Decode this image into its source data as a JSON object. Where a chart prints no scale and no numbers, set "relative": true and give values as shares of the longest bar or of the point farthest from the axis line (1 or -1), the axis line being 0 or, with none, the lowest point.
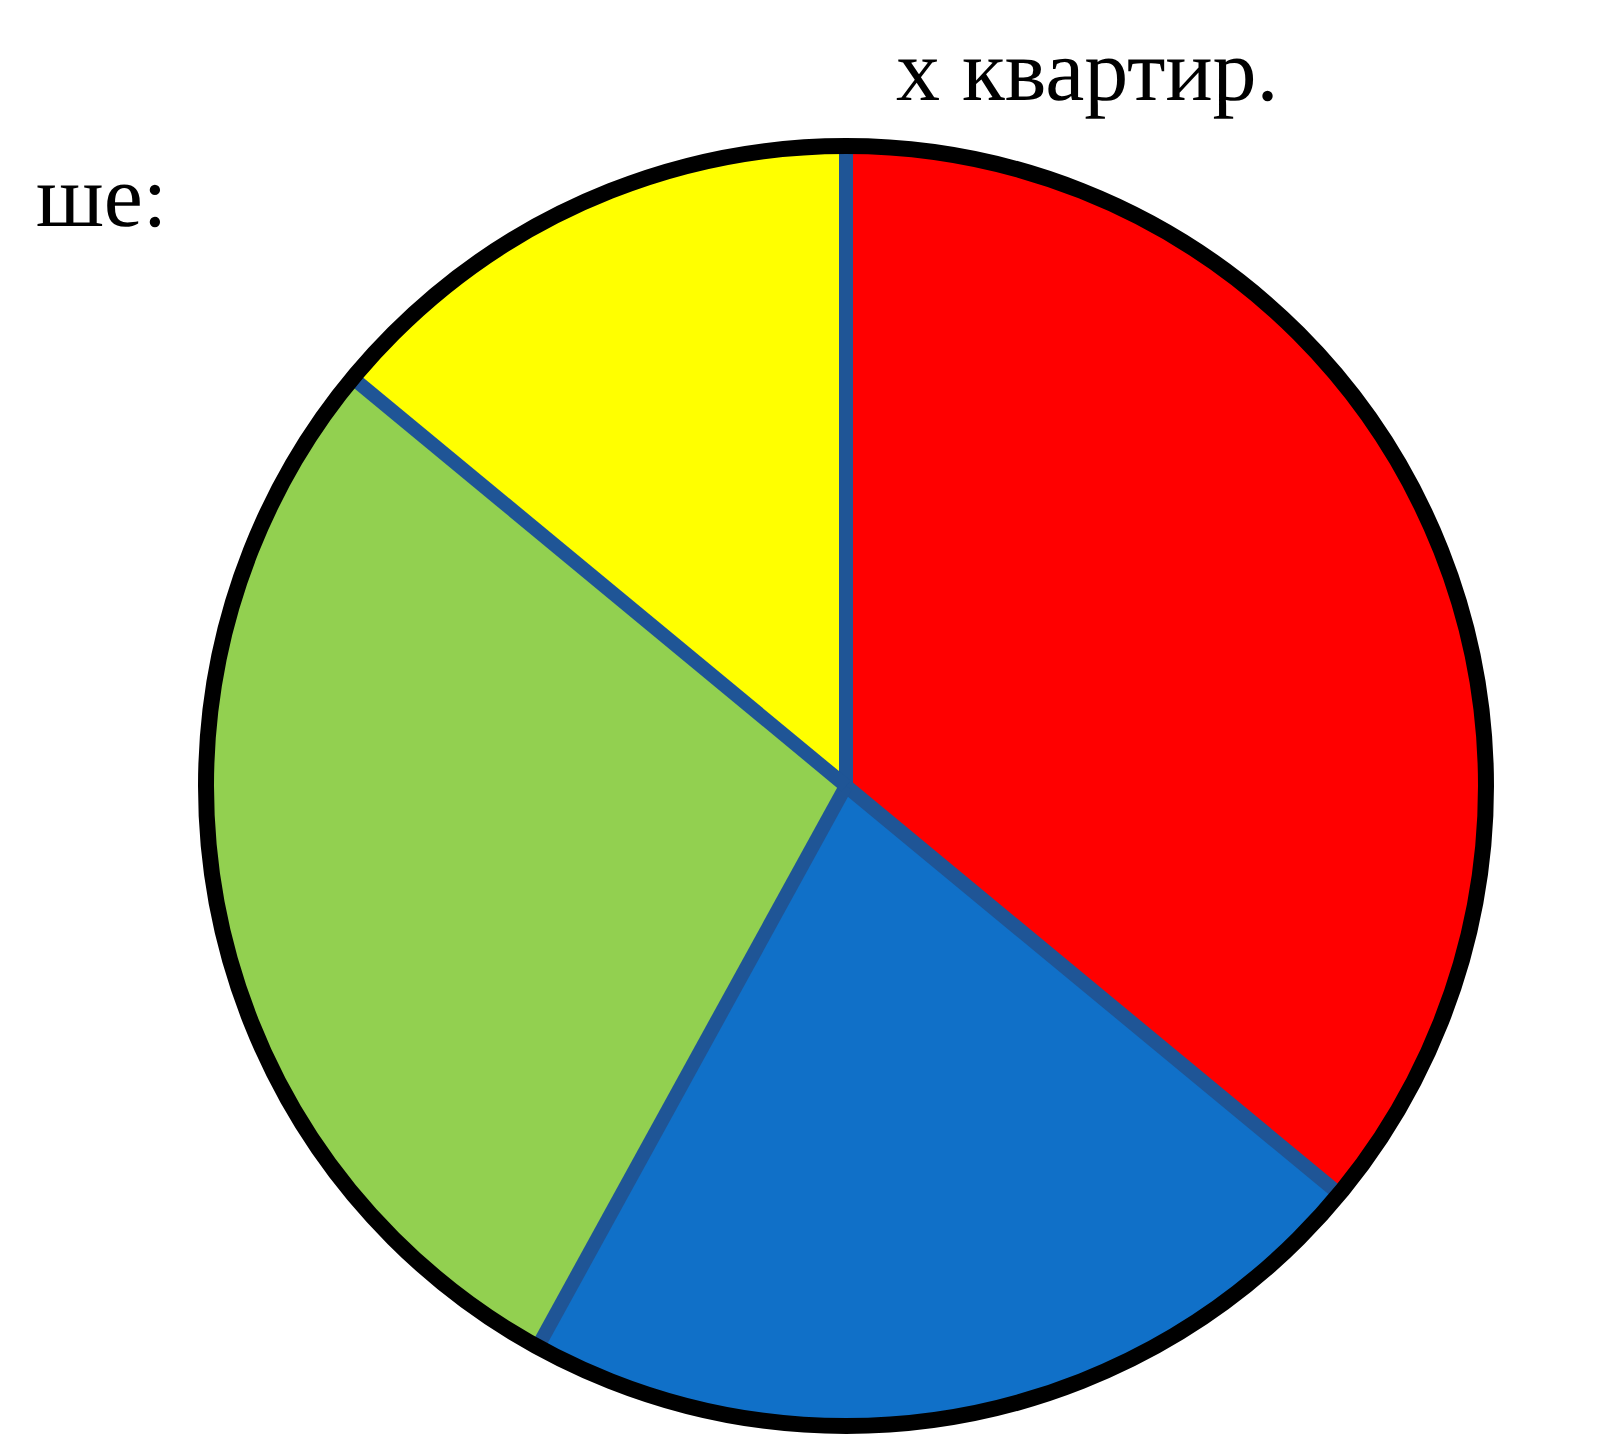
{
  "chart_data": {
    "type": "pie",
    "relative": true,
    "categories": [
      null,
      null,
      null,
      null
    ],
    "values": [
      36,
      22,
      28,
      14
    ],
    "colors": [
      "#ff0000",
      "#1070c8",
      "#92d050",
      "#ffff00"
    ],
    "annotations": [
      "х квартир.",
      "ше:"
    ]
  }
}
